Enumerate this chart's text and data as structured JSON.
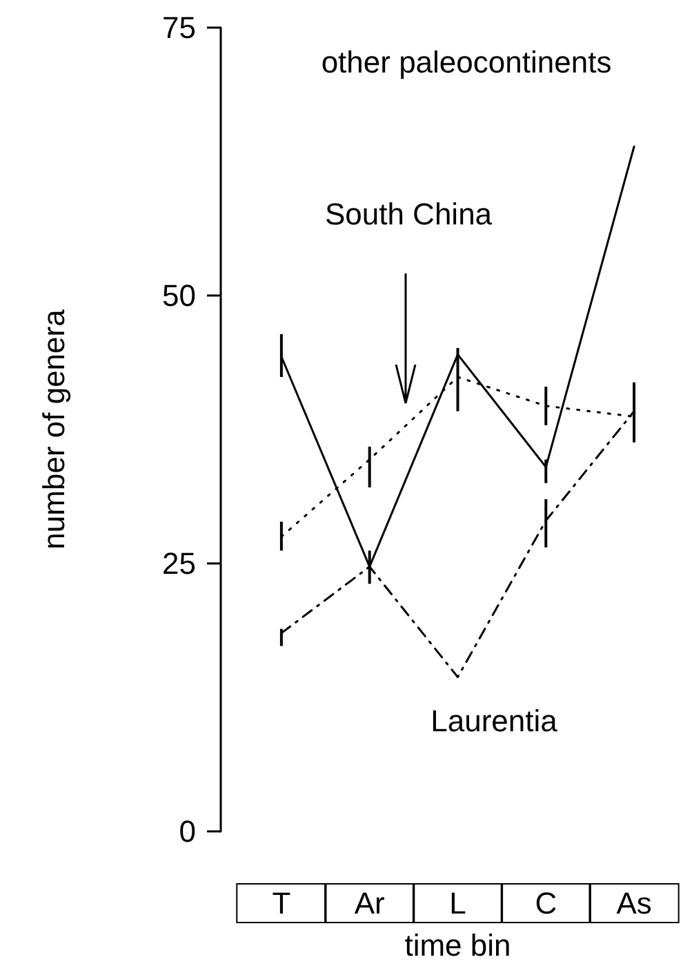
{
  "chart_data": {
    "type": "line",
    "xlabel": "time bin",
    "ylabel": "number of genera",
    "categories": [
      "T",
      "Ar",
      "L",
      "C",
      "As"
    ],
    "ylim": [
      0,
      75
    ],
    "yticks": [
      0,
      25,
      50,
      75
    ],
    "grid": false,
    "marker": "none",
    "series": [
      {
        "color": "#000000",
        "line_style": "solid",
        "values": [
          44.3,
          24.7,
          44.5,
          34.0,
          63.9
        ],
        "errors": [
          [
            42.4,
            46.4
          ],
          [
            23.1,
            26.2
          ],
          null,
          [
            32.5,
            34.7
          ],
          null
        ]
      },
      {
        "color": "#000000",
        "line_style": "dotted",
        "values": [
          27.5,
          34.7,
          42.4,
          39.7,
          38.7
        ],
        "errors": [
          [
            26.2,
            28.9
          ],
          [
            32.1,
            35.9
          ],
          [
            39.2,
            45.1
          ],
          [
            37.9,
            41.5
          ],
          [
            36.3,
            41.9
          ]
        ]
      },
      {
        "color": "#000000",
        "line_style": "dashed",
        "values": [
          18.5,
          24.7,
          14.4,
          29.0,
          39.2
        ],
        "errors": [
          [
            17.3,
            18.9
          ],
          null,
          null,
          [
            26.5,
            31.0
          ],
          null
        ]
      }
    ],
    "annotations": [
      "other paleocontinents",
      "South China",
      "Laurentia"
    ]
  }
}
